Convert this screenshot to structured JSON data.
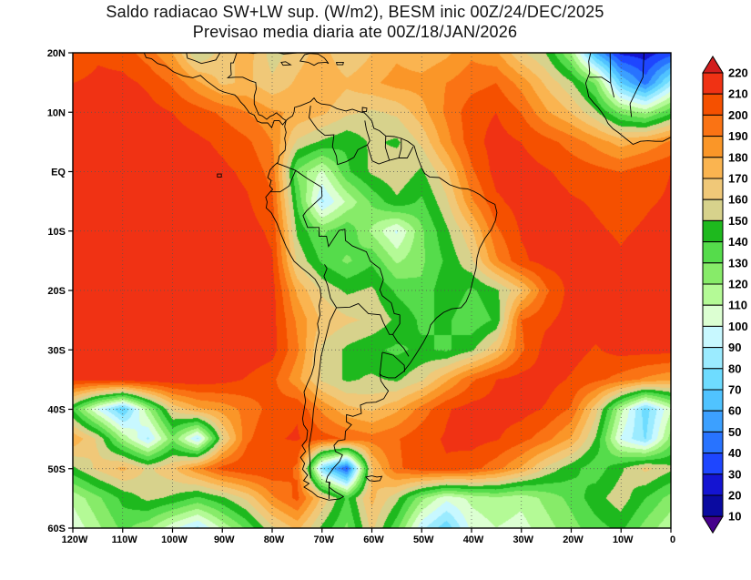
{
  "title": {
    "line1": "Saldo radiacao SW+LW sup. (W/m2), BESM inic 00Z/24/DEC/2025",
    "line2": "Previsao media diaria ate 00Z/18/JAN/2026"
  },
  "chart_data": {
    "type": "heatmap",
    "subtype": "filled-contour-map",
    "title": "Saldo radiacao SW+LW sup. (W/m2), BESM inic 00Z/24/DEC/2025",
    "subtitle": "Previsao media diaria ate 00Z/18/JAN/2026",
    "units": "W/m2",
    "x_axis": {
      "labels": [
        "120W",
        "110W",
        "100W",
        "90W",
        "80W",
        "70W",
        "60W",
        "50W",
        "40W",
        "30W",
        "20W",
        "10W",
        "0"
      ],
      "values": [
        -120,
        -110,
        -100,
        -90,
        -80,
        -70,
        -60,
        -50,
        -40,
        -30,
        -20,
        -10,
        0
      ],
      "range": [
        -120,
        0
      ]
    },
    "y_axis": {
      "labels": [
        "20N",
        "10N",
        "EQ",
        "10S",
        "20S",
        "30S",
        "40S",
        "50S",
        "60S"
      ],
      "values": [
        20,
        10,
        0,
        -10,
        -20,
        -30,
        -40,
        -50,
        -60
      ],
      "range": [
        -60,
        20
      ]
    },
    "grid_dotted": true,
    "colorbar": {
      "position": "right",
      "levels": [
        10,
        20,
        30,
        40,
        50,
        60,
        70,
        80,
        90,
        100,
        110,
        120,
        130,
        140,
        150,
        160,
        170,
        180,
        190,
        200,
        210,
        220
      ],
      "colors": [
        "#46008c",
        "#0a0aa0",
        "#1414d2",
        "#1e46ff",
        "#2873ff",
        "#3ca0ff",
        "#50c3ff",
        "#6edcff",
        "#9bebff",
        "#c8f8ff",
        "#dcffd2",
        "#b4fa96",
        "#87eb69",
        "#55dc4b",
        "#1eb91e",
        "#d7d28c",
        "#f0c878",
        "#fab450",
        "#fa9628",
        "#fa7314",
        "#f55000",
        "#f03214",
        "#d21e1e"
      ]
    },
    "grid": {
      "lons": [
        -120,
        -115,
        -110,
        -105,
        -100,
        -95,
        -90,
        -85,
        -80,
        -75,
        -70,
        -65,
        -60,
        -55,
        -50,
        -45,
        -40,
        -35,
        -30,
        -25,
        -20,
        -15,
        -10,
        -5,
        0
      ],
      "lats": [
        20,
        15,
        10,
        5,
        0,
        -5,
        -10,
        -15,
        -20,
        -25,
        -30,
        -35,
        -40,
        -45,
        -50,
        -55,
        -60
      ],
      "values": [
        [
          200,
          208,
          205,
          195,
          180,
          150,
          165,
          175,
          155,
          165,
          175,
          160,
          170,
          178,
          172,
          178,
          188,
          182,
          162,
          150,
          120,
          60,
          28,
          25,
          35
        ],
        [
          210,
          213,
          213,
          208,
          198,
          182,
          168,
          172,
          162,
          172,
          180,
          172,
          178,
          184,
          184,
          190,
          196,
          200,
          186,
          168,
          152,
          128,
          70,
          45,
          85
        ],
        [
          215,
          217,
          217,
          214,
          210,
          205,
          198,
          190,
          182,
          178,
          172,
          162,
          158,
          162,
          176,
          192,
          206,
          210,
          200,
          182,
          170,
          152,
          128,
          118,
          138
        ],
        [
          217,
          217,
          217,
          216,
          214,
          212,
          208,
          202,
          190,
          158,
          148,
          142,
          152,
          148,
          162,
          186,
          206,
          214,
          210,
          204,
          196,
          186,
          176,
          182,
          192
        ],
        [
          217,
          217,
          217,
          217,
          215,
          214,
          212,
          208,
          196,
          128,
          108,
          138,
          152,
          158,
          148,
          168,
          198,
          214,
          214,
          211,
          207,
          204,
          200,
          206,
          210
        ],
        [
          217,
          217,
          217,
          217,
          217,
          215,
          214,
          211,
          202,
          138,
          88,
          112,
          132,
          148,
          138,
          158,
          188,
          208,
          214,
          214,
          211,
          209,
          207,
          209,
          211
        ],
        [
          217,
          217,
          217,
          217,
          217,
          217,
          215,
          214,
          208,
          148,
          128,
          138,
          118,
          98,
          128,
          148,
          168,
          198,
          211,
          214,
          214,
          211,
          209,
          211,
          214
        ],
        [
          217,
          217,
          217,
          217,
          217,
          217,
          217,
          215,
          211,
          158,
          138,
          128,
          138,
          118,
          128,
          142,
          158,
          188,
          208,
          214,
          214,
          214,
          211,
          214,
          214
        ],
        [
          217,
          217,
          217,
          217,
          217,
          217,
          217,
          217,
          214,
          178,
          158,
          148,
          152,
          138,
          132,
          148,
          138,
          148,
          168,
          198,
          214,
          214,
          214,
          214,
          214
        ],
        [
          217,
          217,
          217,
          217,
          217,
          217,
          217,
          217,
          214,
          188,
          168,
          162,
          158,
          148,
          138,
          142,
          132,
          142,
          200,
          208,
          214,
          214,
          214,
          214,
          214
        ],
        [
          217,
          217,
          217,
          217,
          217,
          217,
          217,
          217,
          214,
          192,
          158,
          148,
          142,
          138,
          142,
          138,
          148,
          168,
          198,
          214,
          214,
          209,
          214,
          214,
          214
        ],
        [
          214,
          214,
          217,
          217,
          217,
          217,
          214,
          209,
          203,
          183,
          158,
          148,
          152,
          148,
          158,
          178,
          198,
          210,
          214,
          214,
          209,
          203,
          196,
          188,
          182
        ],
        [
          138,
          98,
          68,
          118,
          162,
          178,
          184,
          194,
          204,
          209,
          188,
          173,
          168,
          178,
          194,
          209,
          214,
          214,
          214,
          209,
          199,
          164,
          114,
          74,
          108
        ],
        [
          178,
          158,
          118,
          88,
          128,
          88,
          158,
          198,
          209,
          211,
          204,
          199,
          194,
          199,
          207,
          211,
          214,
          211,
          204,
          194,
          179,
          149,
          99,
          79,
          124
        ],
        [
          148,
          163,
          173,
          158,
          168,
          188,
          204,
          209,
          209,
          198,
          78,
          38,
          168,
          198,
          206,
          209,
          204,
          194,
          179,
          158,
          144,
          134,
          148,
          163,
          153
        ],
        [
          113,
          128,
          143,
          153,
          148,
          138,
          148,
          163,
          188,
          203,
          168,
          138,
          173,
          153,
          123,
          103,
          113,
          118,
          113,
          123,
          133,
          146,
          156,
          140,
          126
        ],
        [
          103,
          118,
          133,
          123,
          103,
          88,
          113,
          133,
          158,
          173,
          148,
          128,
          163,
          133,
          93,
          73,
          103,
          110,
          106,
          116,
          126,
          136,
          143,
          126,
          113
        ]
      ]
    }
  }
}
